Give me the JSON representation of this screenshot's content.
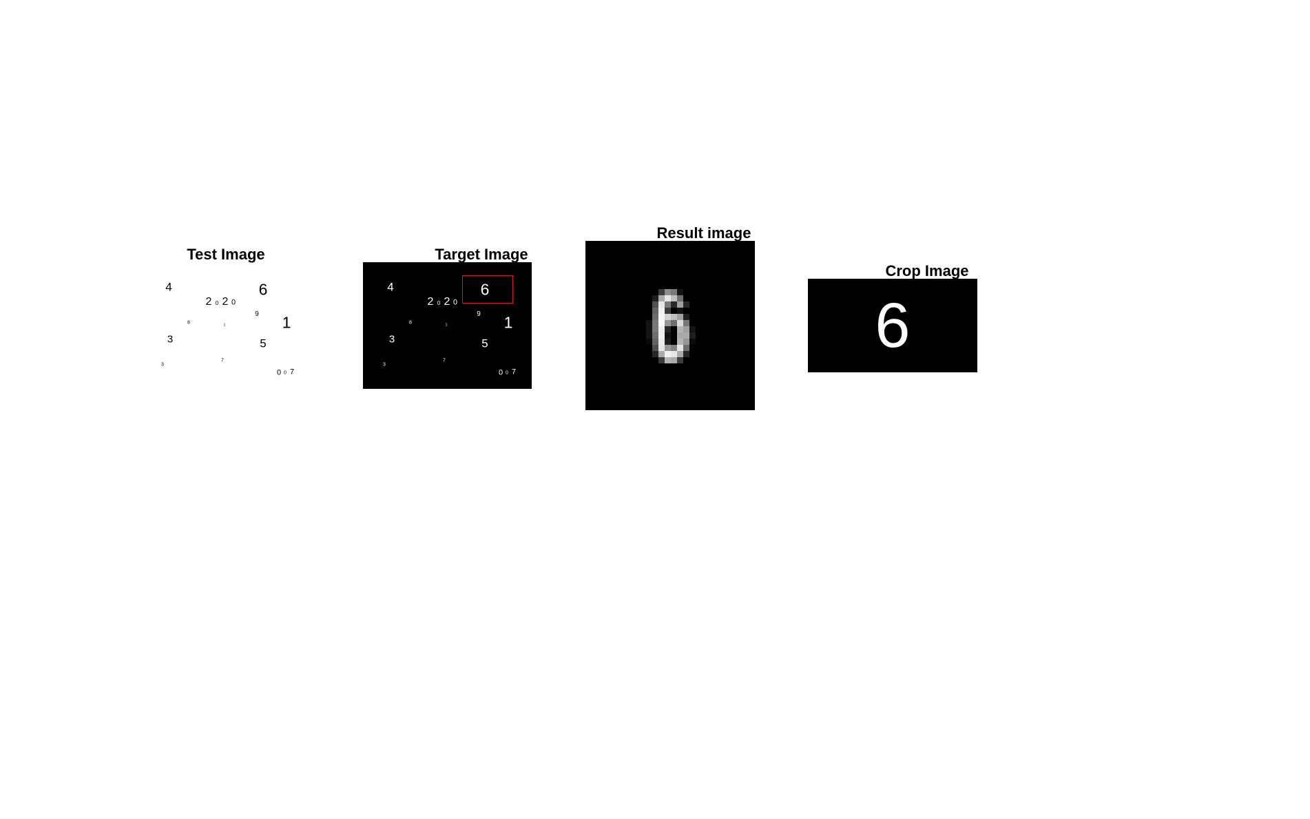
{
  "panels": {
    "test": {
      "title": "Test Image"
    },
    "target": {
      "title": "Target Image"
    },
    "result": {
      "title": "Result image"
    },
    "crop": {
      "title": "Crop Image",
      "digit": "6"
    }
  },
  "scene_digits": [
    {
      "text": "4"
    },
    {
      "text": "6"
    },
    {
      "text": "2"
    },
    {
      "text": "0"
    },
    {
      "text": "2"
    },
    {
      "text": "0"
    },
    {
      "text": "9"
    },
    {
      "text": "1"
    },
    {
      "text": "8"
    },
    {
      "text": "1"
    },
    {
      "text": "3"
    },
    {
      "text": "5"
    },
    {
      "text": "7"
    },
    {
      "text": "3"
    },
    {
      "text": "0"
    },
    {
      "text": "0"
    },
    {
      "text": "7"
    }
  ],
  "colors": {
    "detection_box": "#cc1f1f",
    "background": "#ffffff",
    "panel_dark": "#000000"
  }
}
